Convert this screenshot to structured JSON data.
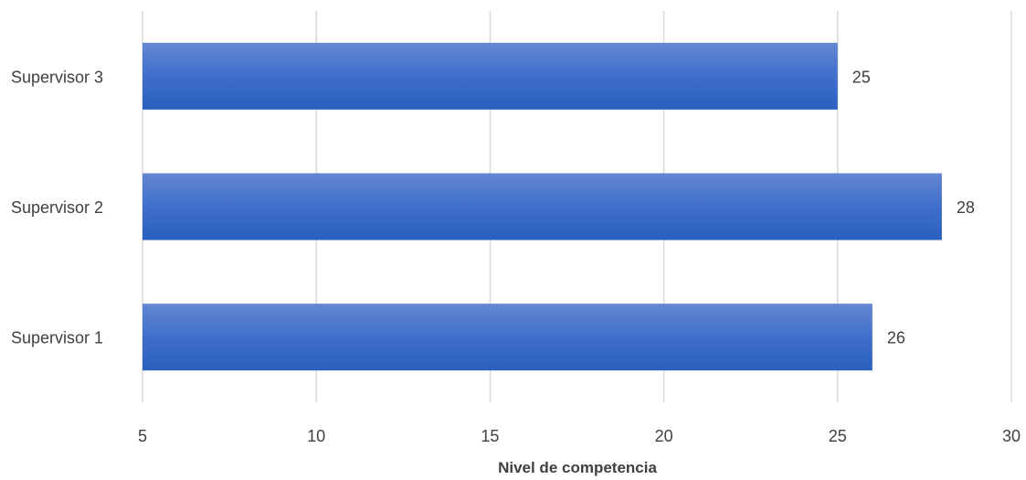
{
  "chart_data": {
    "type": "bar",
    "orientation": "horizontal",
    "title": "",
    "xlabel": "Nivel de competencia",
    "ylabel": "",
    "xlim": [
      5,
      30
    ],
    "x_ticks": [
      5,
      10,
      15,
      20,
      25,
      30
    ],
    "categories": [
      "Supervisor 1",
      "Supervisor 2",
      "Supervisor 3"
    ],
    "values": [
      26,
      28,
      25
    ],
    "data_labels": true,
    "grid": "vertical",
    "legend": "none",
    "colors": {
      "bar_top": "#6487d2",
      "bar_bottom": "#2a5fbf",
      "grid": "#d9d9d9",
      "text": "#404040"
    }
  }
}
